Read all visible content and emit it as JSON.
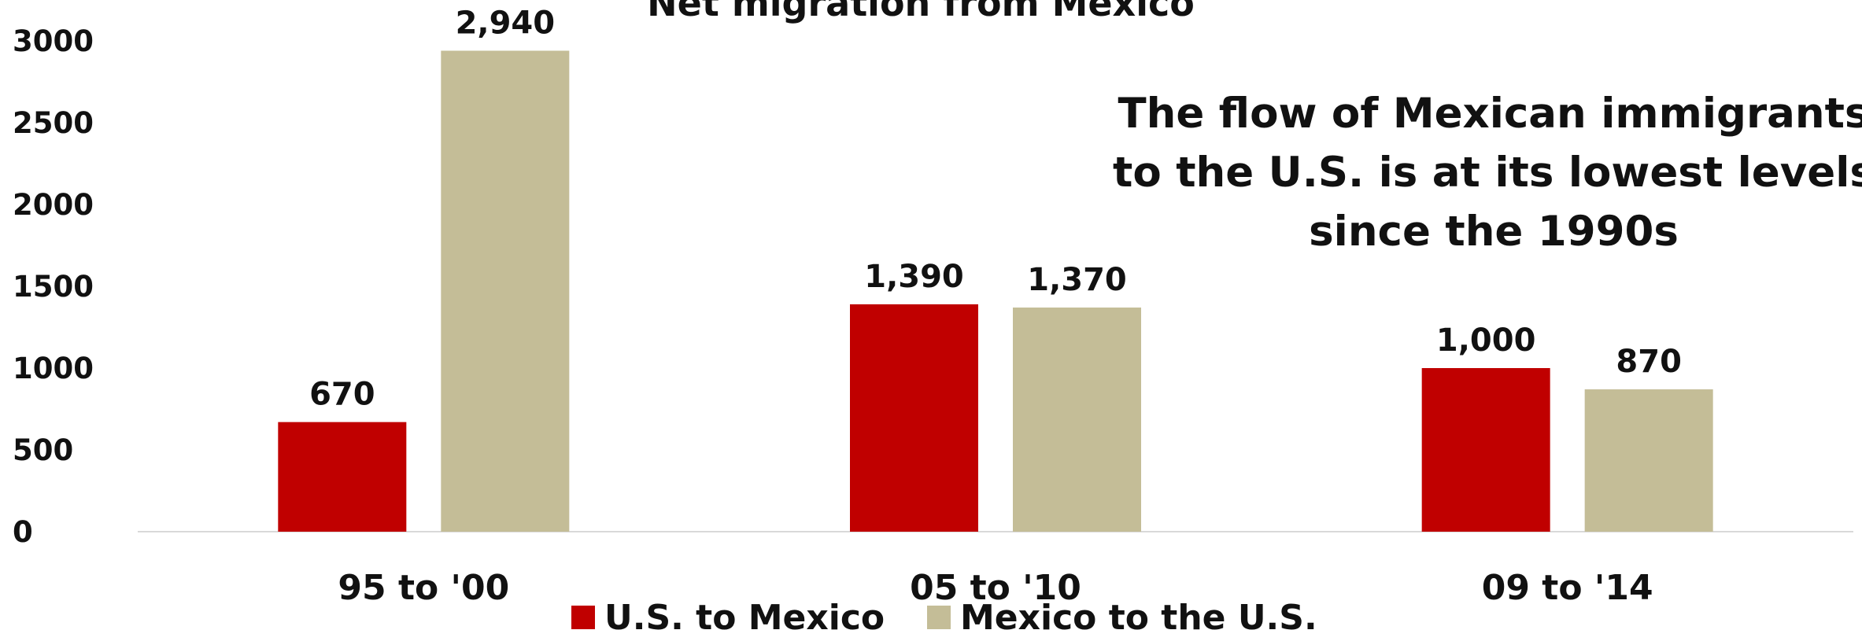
{
  "chart_data": {
    "type": "bar",
    "title": "Net migration from Mexico",
    "annotation": [
      "The flow of Mexican immigrants",
      "to the U.S. is at its lowest levels",
      "since the 1990s"
    ],
    "categories": [
      "95 to '00",
      "05 to '10",
      "09 to '14"
    ],
    "series": [
      {
        "name": "U.S. to Mexico",
        "color": "#c00000",
        "values": [
          670,
          1390,
          1000
        ],
        "labels": [
          "670",
          "1,390",
          "1,000"
        ]
      },
      {
        "name": "Mexico to the U.S.",
        "color": "#c4bd97",
        "values": [
          2940,
          1370,
          870
        ],
        "labels": [
          "2,940",
          "1,370",
          "870"
        ]
      }
    ],
    "yticks": [
      "0",
      "500",
      "1000",
      "1500",
      "2000",
      "2500",
      "3000"
    ],
    "ytick_values": [
      0,
      500,
      1000,
      1500,
      2000,
      2500,
      3000
    ],
    "ylim": [
      0,
      3000
    ],
    "xlabel": "",
    "ylabel": "",
    "grid": false,
    "legend_position": "bottom"
  }
}
